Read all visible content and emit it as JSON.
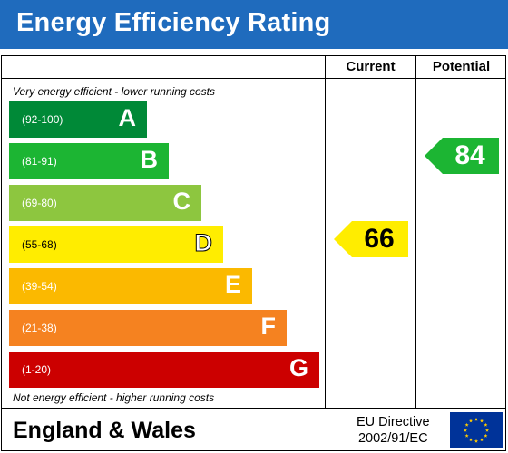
{
  "header": {
    "title": "Energy Efficiency Rating"
  },
  "columns": {
    "current": "Current",
    "potential": "Potential"
  },
  "captions": {
    "top": "Very energy efficient - lower running costs",
    "bottom": "Not energy efficient - higher running costs"
  },
  "chart_data": {
    "type": "bar",
    "categories": [
      "A",
      "B",
      "C",
      "D",
      "E",
      "F",
      "G"
    ],
    "bands": [
      {
        "letter": "A",
        "range": "(92-100)",
        "color": "#008937"
      },
      {
        "letter": "B",
        "range": "(81-91)",
        "color": "#1cb533"
      },
      {
        "letter": "C",
        "range": "(69-80)",
        "color": "#8dc63f"
      },
      {
        "letter": "D",
        "range": "(55-68)",
        "color": "#ffed00"
      },
      {
        "letter": "E",
        "range": "(39-54)",
        "color": "#fbb900"
      },
      {
        "letter": "F",
        "range": "(21-38)",
        "color": "#f58220"
      },
      {
        "letter": "G",
        "range": "(1-20)",
        "color": "#cc0000"
      }
    ],
    "current": {
      "value": 66,
      "band": "D",
      "color": "#ffed00"
    },
    "potential": {
      "value": 84,
      "band": "B",
      "color": "#1cb533"
    }
  },
  "footer": {
    "region": "England & Wales",
    "directive_line1": "EU Directive",
    "directive_line2": "2002/91/EC",
    "flag_color": "#003399",
    "star_color": "#ffcc00"
  }
}
